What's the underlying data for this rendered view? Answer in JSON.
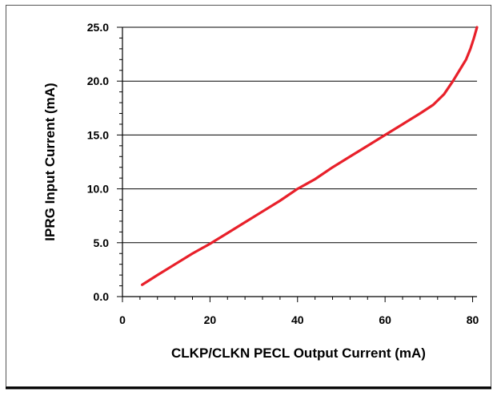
{
  "chart_data": {
    "type": "line",
    "title": "",
    "xlabel": "CLKP/CLKN PECL Output Current (mA)",
    "ylabel": "IPRG Input Current (mA)",
    "xlim": [
      0,
      81
    ],
    "ylim": [
      0,
      25
    ],
    "x_ticks": [
      "0",
      "20",
      "40",
      "60",
      "80"
    ],
    "x_tick_values": [
      0,
      20,
      40,
      60,
      80
    ],
    "y_ticks": [
      "0.0",
      "5.0",
      "10.0",
      "15.0",
      "20.0",
      "25.0"
    ],
    "y_tick_values": [
      0,
      5,
      10,
      15,
      20,
      25
    ],
    "grid": "horizontal major gridlines",
    "series": [
      {
        "name": "",
        "color": "#e8202a",
        "points": [
          [
            4.5,
            1.1
          ],
          [
            8,
            2.0
          ],
          [
            12,
            3.0
          ],
          [
            16,
            4.0
          ],
          [
            20,
            4.9
          ],
          [
            24,
            5.9
          ],
          [
            28,
            6.9
          ],
          [
            32,
            7.9
          ],
          [
            36,
            8.9
          ],
          [
            40,
            10.0
          ],
          [
            44,
            10.9
          ],
          [
            48,
            12.0
          ],
          [
            52,
            13.0
          ],
          [
            56,
            14.0
          ],
          [
            60,
            15.0
          ],
          [
            64,
            16.0
          ],
          [
            68,
            17.0
          ],
          [
            71,
            17.8
          ],
          [
            73.5,
            18.8
          ],
          [
            75.5,
            20.0
          ],
          [
            77,
            21.0
          ],
          [
            78.5,
            22.0
          ],
          [
            79.5,
            23.0
          ],
          [
            80.3,
            24.0
          ],
          [
            81,
            25.0
          ]
        ]
      }
    ]
  },
  "colors": {
    "line": "#e8202a",
    "axis": "#000000",
    "grid": "#000000",
    "frame": "#555555"
  }
}
